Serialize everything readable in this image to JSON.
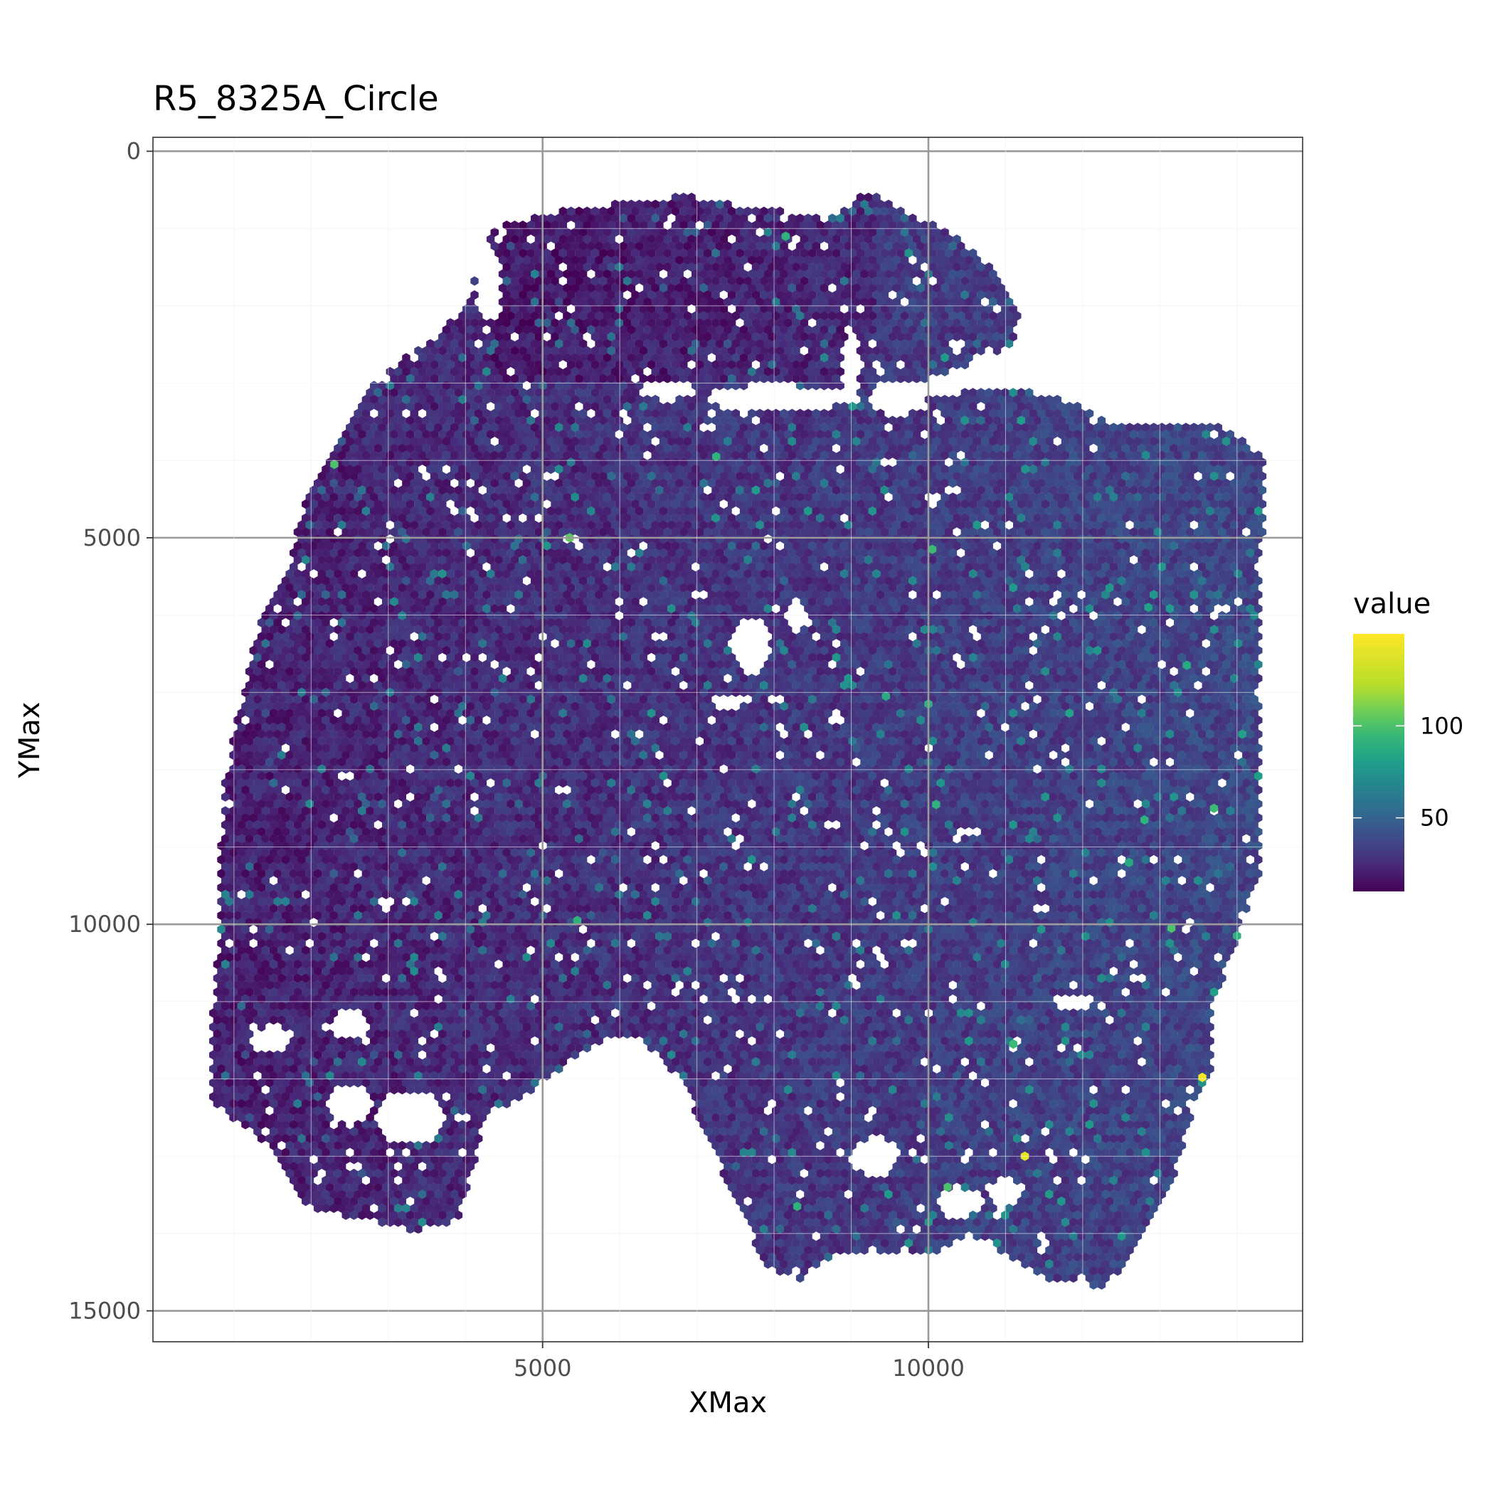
{
  "chart_data": {
    "type": "heatmap",
    "subtype": "hexbin spatial map",
    "title": "R5_8325A_Circle",
    "xlabel": "XMax",
    "ylabel": "YMax",
    "xlim": [
      -50,
      14850
    ],
    "ylim": [
      15400,
      -180
    ],
    "y_reversed": true,
    "x_ticks": [
      5000,
      10000
    ],
    "x_tick_labels": [
      "5000",
      "10000"
    ],
    "y_ticks": [
      0,
      5000,
      10000,
      15000
    ],
    "y_tick_labels": [
      "0",
      "5000",
      "10000",
      "15000"
    ],
    "grid": true,
    "theme": "bw",
    "legend": {
      "title": "value",
      "placement": "right",
      "colormap": "viridis",
      "range": [
        10,
        150
      ],
      "ticks": [
        50,
        100
      ],
      "tick_labels": [
        "50",
        "100"
      ]
    },
    "typical_range": [
      20,
      60
    ],
    "outlier_cells": [
      {
        "x": 13550,
        "y": 11980,
        "value": 148
      },
      {
        "x": 11250,
        "y": 13000,
        "value": 145
      },
      {
        "x": 2300,
        "y": 4050,
        "value": 110
      },
      {
        "x": 8150,
        "y": 1100,
        "value": 100
      },
      {
        "x": 5350,
        "y": 5000,
        "value": 115
      },
      {
        "x": 7250,
        "y": 3950,
        "value": 100
      },
      {
        "x": 10050,
        "y": 5150,
        "value": 105
      },
      {
        "x": 10100,
        "y": 8450,
        "value": 100
      },
      {
        "x": 10000,
        "y": 7150,
        "value": 100
      },
      {
        "x": 9450,
        "y": 7050,
        "value": 95
      },
      {
        "x": 5450,
        "y": 9950,
        "value": 100
      },
      {
        "x": 13150,
        "y": 10050,
        "value": 110
      },
      {
        "x": 14000,
        "y": 10150,
        "value": 100
      },
      {
        "x": 11100,
        "y": 11550,
        "value": 105
      },
      {
        "x": 10250,
        "y": 13400,
        "value": 110
      },
      {
        "x": 8300,
        "y": 13650,
        "value": 100
      },
      {
        "x": 13700,
        "y": 8500,
        "value": 105
      },
      {
        "x": 12800,
        "y": 8650,
        "value": 100
      },
      {
        "x": 12600,
        "y": 9200,
        "value": 95
      },
      {
        "x": 12850,
        "y": 5900,
        "value": 90
      },
      {
        "x": 13350,
        "y": 6650,
        "value": 95
      }
    ]
  }
}
